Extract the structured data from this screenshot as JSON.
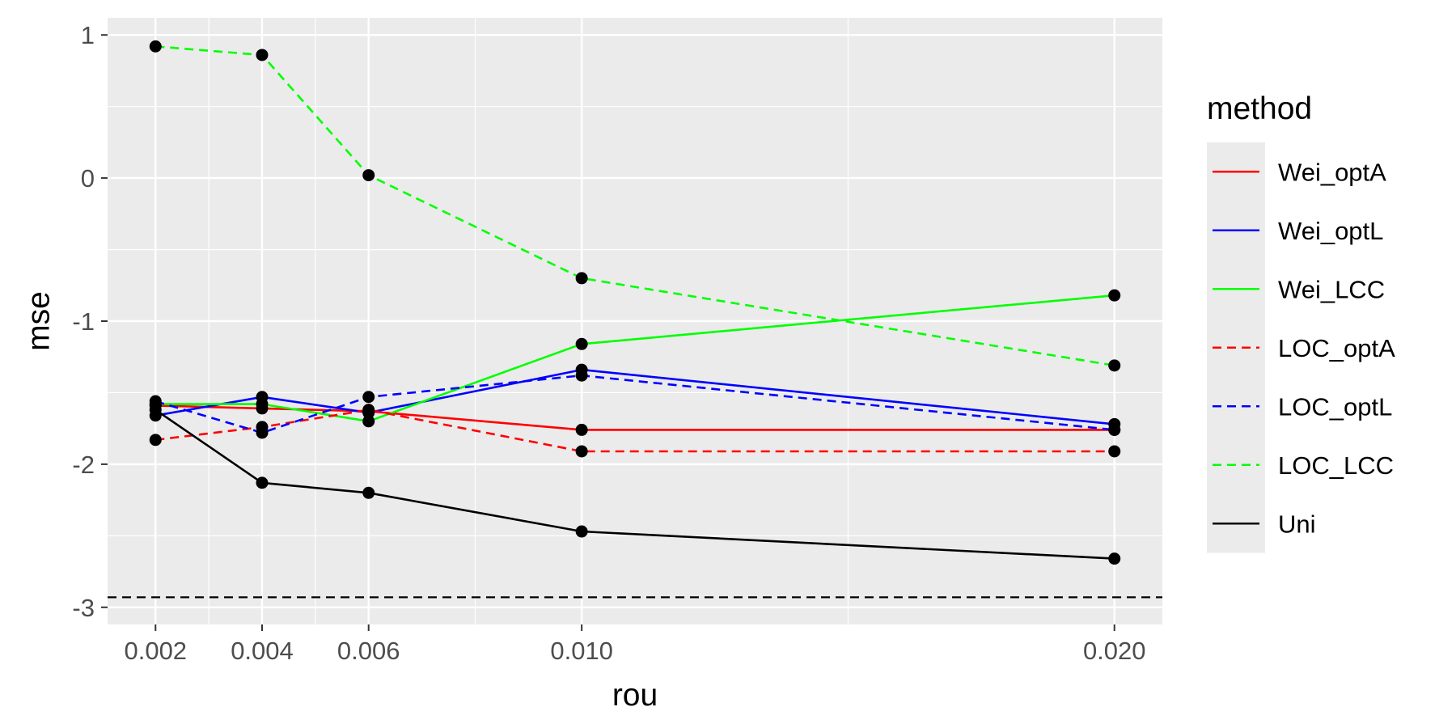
{
  "chart_data": {
    "type": "line",
    "xlabel": "rou",
    "ylabel": "mse",
    "x": [
      0.002,
      0.004,
      0.006,
      0.01,
      0.02
    ],
    "x_tick_labels": [
      "0.002",
      "0.004",
      "0.006",
      "0.010",
      "0.020"
    ],
    "y_ticks": [
      1,
      0,
      -1,
      -2,
      -3
    ],
    "y_tick_labels": [
      "1",
      "0",
      "-1",
      "-2",
      "-3"
    ],
    "xlim": [
      0.0011,
      0.0209
    ],
    "ylim": [
      -3.12,
      1.12
    ],
    "reference_line": {
      "y": -2.93,
      "style": "dashed",
      "color": "#000000"
    },
    "grid": true,
    "panel_background": "#ebebeb",
    "legend": {
      "title": "method",
      "position": "right"
    },
    "series": [
      {
        "name": "Wei_optA",
        "color": "#ff0000",
        "dash": "solid",
        "values": [
          -1.59,
          -1.61,
          -1.63,
          -1.76,
          -1.76
        ]
      },
      {
        "name": "Wei_optL",
        "color": "#0000ff",
        "dash": "solid",
        "values": [
          -1.66,
          -1.53,
          -1.64,
          -1.34,
          -1.72
        ]
      },
      {
        "name": "Wei_LCC",
        "color": "#00ff00",
        "dash": "solid",
        "values": [
          -1.58,
          -1.58,
          -1.7,
          -1.16,
          -0.82
        ]
      },
      {
        "name": "LOC_optA",
        "color": "#ff0000",
        "dash": "dashed",
        "values": [
          -1.83,
          -1.74,
          -1.62,
          -1.91,
          -1.91
        ]
      },
      {
        "name": "LOC_optL",
        "color": "#0000ff",
        "dash": "dashed",
        "values": [
          -1.56,
          -1.78,
          -1.53,
          -1.38,
          -1.76
        ]
      },
      {
        "name": "LOC_LCC",
        "color": "#00ff00",
        "dash": "dashed",
        "values": [
          0.92,
          0.86,
          0.02,
          -0.7,
          -1.31
        ]
      },
      {
        "name": "Uni",
        "color": "#000000",
        "dash": "solid",
        "values": [
          -1.62,
          -2.13,
          -2.2,
          -2.47,
          -2.66
        ]
      }
    ]
  }
}
